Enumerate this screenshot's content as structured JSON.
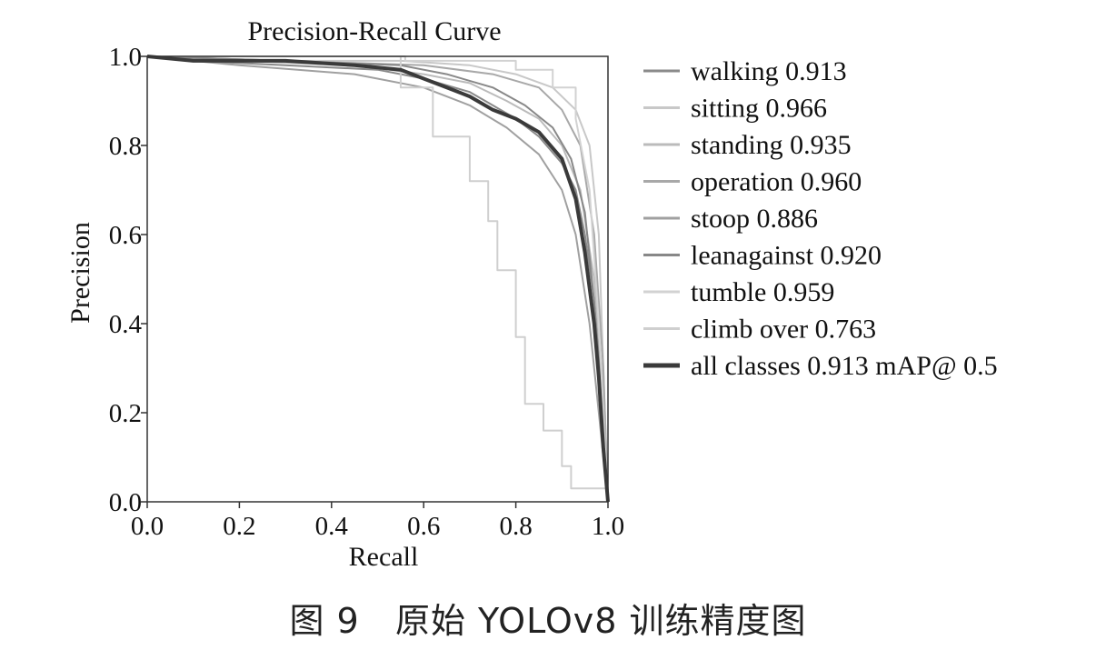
{
  "caption": "图 9   原始 YOLOv8 训练精度图",
  "chart_data": {
    "type": "line",
    "title": "Precision-Recall Curve",
    "xlabel": "Recall",
    "ylabel": "Precision",
    "xlim": [
      0,
      1
    ],
    "ylim": [
      0,
      1
    ],
    "xticks": [
      "0.0",
      "0.2",
      "0.4",
      "0.6",
      "0.8",
      "1.0"
    ],
    "yticks": [
      "0.0",
      "0.2",
      "0.4",
      "0.6",
      "0.8",
      "1.0"
    ],
    "grid": false,
    "legend_position": "right",
    "series": [
      {
        "name": "walking 0.913",
        "color": "#8a8a8a",
        "width": 2,
        "x": [
          0.0,
          0.1,
          0.3,
          0.5,
          0.6,
          0.7,
          0.75,
          0.8,
          0.85,
          0.9,
          0.93,
          0.95,
          0.97,
          0.99,
          1.0
        ],
        "y": [
          1.0,
          0.99,
          0.98,
          0.97,
          0.95,
          0.92,
          0.89,
          0.86,
          0.82,
          0.76,
          0.7,
          0.6,
          0.45,
          0.2,
          0.0
        ]
      },
      {
        "name": "sitting 0.966",
        "color": "#c8c8c8",
        "width": 2,
        "x": [
          0.0,
          0.3,
          0.55,
          0.7,
          0.8,
          0.88,
          0.93,
          0.96,
          0.98,
          0.99,
          1.0
        ],
        "y": [
          1.0,
          0.99,
          0.99,
          0.98,
          0.96,
          0.93,
          0.88,
          0.8,
          0.6,
          0.3,
          0.0
        ]
      },
      {
        "name": "standing 0.935",
        "color": "#bbbbbb",
        "width": 2,
        "x": [
          0.0,
          0.2,
          0.45,
          0.6,
          0.7,
          0.78,
          0.85,
          0.9,
          0.94,
          0.97,
          0.99,
          1.0
        ],
        "y": [
          1.0,
          0.99,
          0.98,
          0.96,
          0.94,
          0.9,
          0.86,
          0.8,
          0.7,
          0.5,
          0.25,
          0.0
        ]
      },
      {
        "name": "operation 0.960",
        "color": "#a8a8a8",
        "width": 2,
        "x": [
          0.0,
          0.3,
          0.6,
          0.75,
          0.85,
          0.9,
          0.94,
          0.97,
          0.99,
          1.0
        ],
        "y": [
          1.0,
          0.99,
          0.98,
          0.96,
          0.93,
          0.88,
          0.8,
          0.6,
          0.3,
          0.0
        ]
      },
      {
        "name": "stoop 0.886",
        "color": "#a0a0a0",
        "width": 2,
        "x": [
          0.0,
          0.2,
          0.45,
          0.6,
          0.7,
          0.78,
          0.85,
          0.9,
          0.93,
          0.96,
          0.98,
          1.0
        ],
        "y": [
          1.0,
          0.98,
          0.96,
          0.93,
          0.89,
          0.84,
          0.78,
          0.7,
          0.6,
          0.4,
          0.2,
          0.0
        ]
      },
      {
        "name": "leanagainst 0.920",
        "color": "#888888",
        "width": 2,
        "x": [
          0.0,
          0.3,
          0.55,
          0.65,
          0.75,
          0.82,
          0.88,
          0.92,
          0.95,
          0.97,
          0.99,
          1.0
        ],
        "y": [
          1.0,
          0.99,
          0.98,
          0.96,
          0.93,
          0.89,
          0.84,
          0.77,
          0.65,
          0.45,
          0.2,
          0.0
        ]
      },
      {
        "name": "tumble 0.959",
        "color": "#d2d2d2",
        "width": 2,
        "x": [
          0.0,
          0.56,
          0.56,
          0.8,
          0.8,
          0.88,
          0.88,
          0.93,
          0.93,
          0.96,
          0.98,
          1.0
        ],
        "y": [
          1.0,
          1.0,
          0.99,
          0.99,
          0.97,
          0.97,
          0.93,
          0.93,
          0.86,
          0.7,
          0.4,
          0.0
        ]
      },
      {
        "name": "climb over 0.763",
        "color": "#cfcfcf",
        "width": 2,
        "x": [
          0.0,
          0.55,
          0.55,
          0.62,
          0.62,
          0.7,
          0.7,
          0.74,
          0.74,
          0.76,
          0.76,
          0.8,
          0.8,
          0.82,
          0.82,
          0.86,
          0.86,
          0.9,
          0.9,
          0.92,
          0.92,
          1.0
        ],
        "y": [
          1.0,
          1.0,
          0.93,
          0.93,
          0.82,
          0.82,
          0.72,
          0.72,
          0.63,
          0.63,
          0.52,
          0.52,
          0.37,
          0.37,
          0.22,
          0.22,
          0.16,
          0.16,
          0.08,
          0.08,
          0.03,
          0.03
        ]
      },
      {
        "name": "all classes 0.913 mAP@ 0.5",
        "color": "#3a3a3a",
        "width": 4,
        "x": [
          0.0,
          0.1,
          0.3,
          0.45,
          0.55,
          0.6,
          0.65,
          0.7,
          0.75,
          0.8,
          0.85,
          0.9,
          0.93,
          0.95,
          0.97,
          0.98,
          0.99,
          1.0
        ],
        "y": [
          1.0,
          0.99,
          0.99,
          0.98,
          0.97,
          0.95,
          0.93,
          0.91,
          0.88,
          0.86,
          0.83,
          0.77,
          0.68,
          0.56,
          0.4,
          0.28,
          0.12,
          0.0
        ]
      }
    ]
  }
}
